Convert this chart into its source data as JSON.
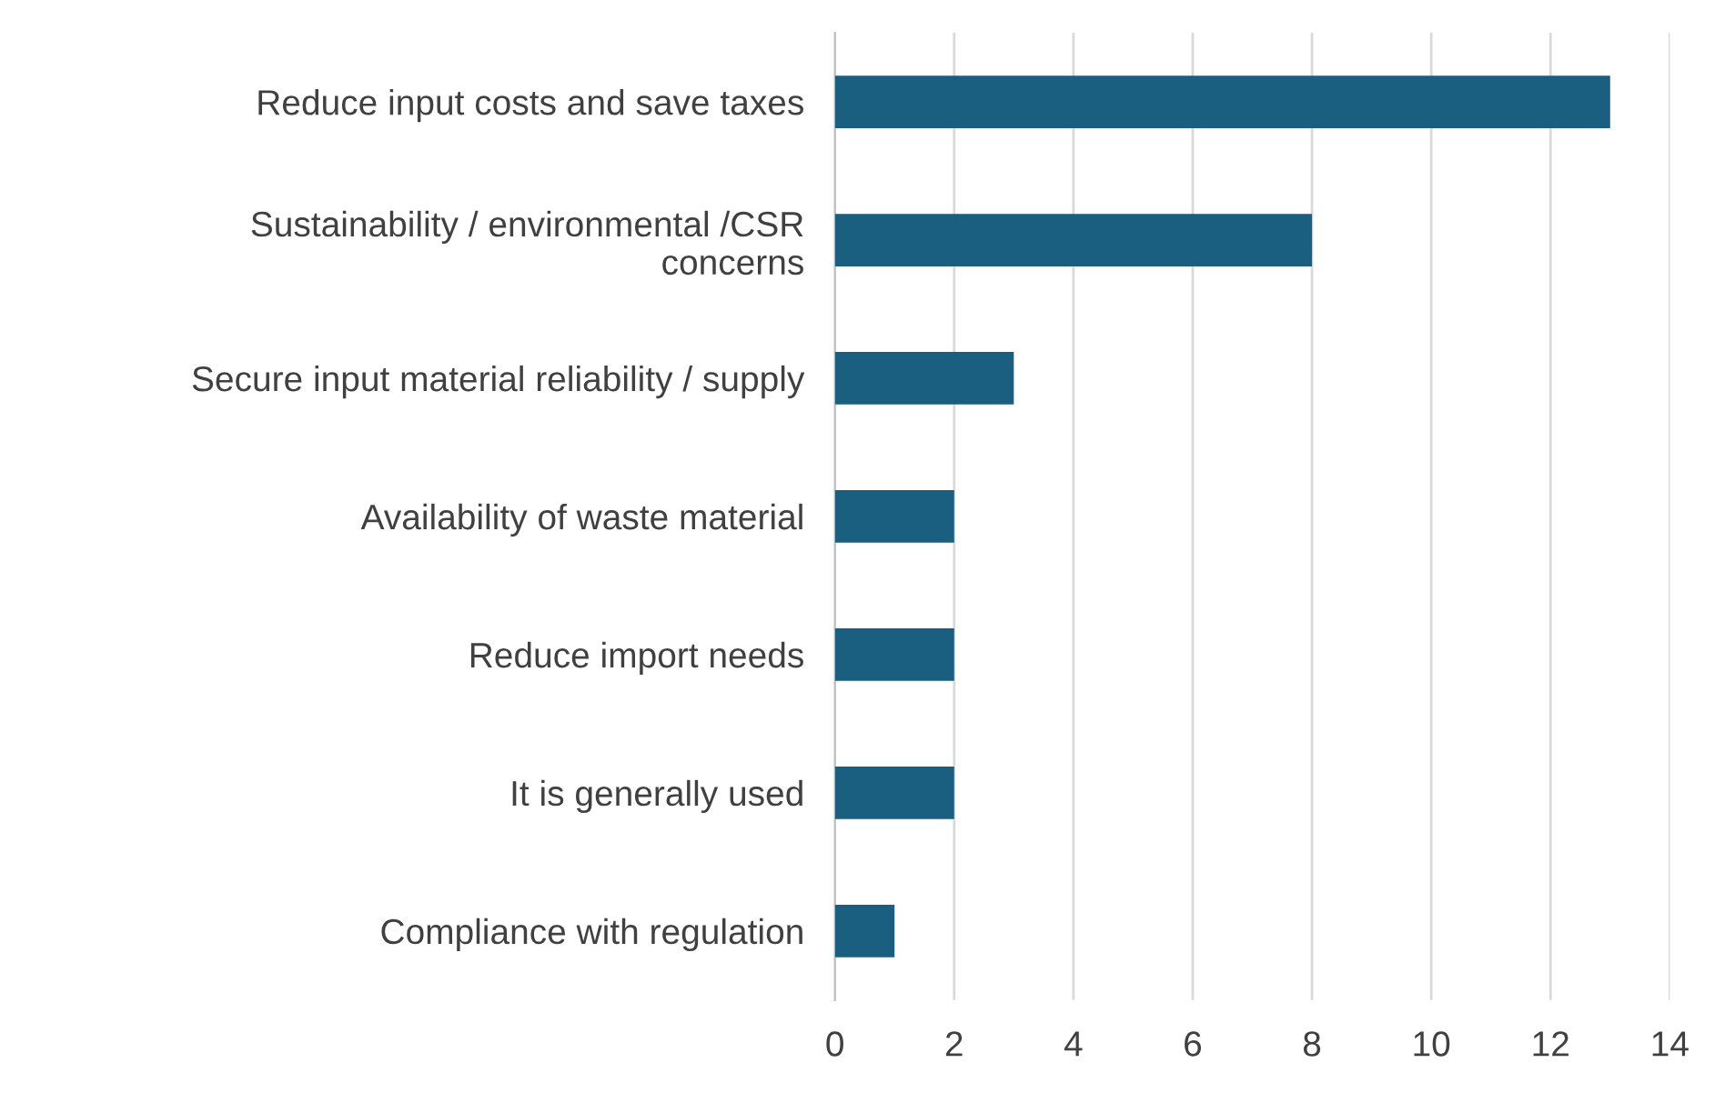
{
  "chart_data": {
    "type": "bar",
    "orientation": "horizontal",
    "categories": [
      "Reduce input costs and save taxes",
      "Sustainability / environmental /CSR\nconcerns",
      "Secure input material reliability / supply",
      "Availability of waste material",
      "Reduce import needs",
      "It is generally used",
      "Compliance with regulation"
    ],
    "values": [
      13,
      8,
      3,
      2,
      2,
      2,
      1
    ],
    "color": "#1a5e80",
    "xlim": [
      0,
      14
    ],
    "xticks": [
      0,
      2,
      4,
      6,
      8,
      10,
      12,
      14
    ],
    "grid": "x",
    "legend": false
  }
}
